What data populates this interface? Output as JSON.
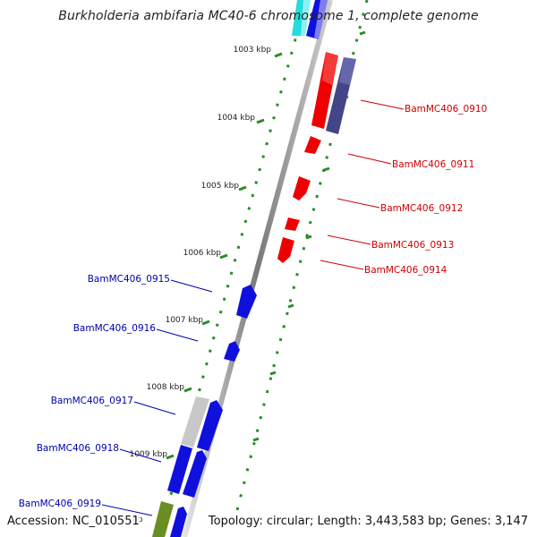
{
  "title": "Burkholderia ambifaria MC40-6 chromosome 1, complete genome",
  "accession": "Accession: NC_010551",
  "topology": "Topology: circular; Length: 3,443,583 bp; Genes: 3,147",
  "bp_fragment": "bp",
  "colors": {
    "forward_gene": "#ee0000",
    "reverse_gene": "#1010dd",
    "forward_label": "#cc0000",
    "reverse_label": "#0000aa",
    "scale_dots": "#2a8a2a",
    "backbone": "#7a7a7a",
    "rna_gene": "#444488",
    "pseudo_gene": "#c8c8c8",
    "olive_gene": "#6b8e23",
    "cyan_gene": "#22dddd"
  },
  "scale_ticks": [
    "1003 kbp",
    "1004 kbp",
    "1005 kbp",
    "1006 kbp",
    "1007 kbp",
    "1008 kbp",
    "1009 kbp"
  ],
  "forward_genes": [
    {
      "label": "BamMC406_0910"
    },
    {
      "label": "BamMC406_0911"
    },
    {
      "label": "BamMC406_0912"
    },
    {
      "label": "BamMC406_0913"
    },
    {
      "label": "BamMC406_0914"
    }
  ],
  "reverse_genes": [
    {
      "label": "BamMC406_0915"
    },
    {
      "label": "BamMC406_0916"
    },
    {
      "label": "BamMC406_0917"
    },
    {
      "label": "BamMC406_0918"
    },
    {
      "label": "BamMC406_0919"
    }
  ]
}
